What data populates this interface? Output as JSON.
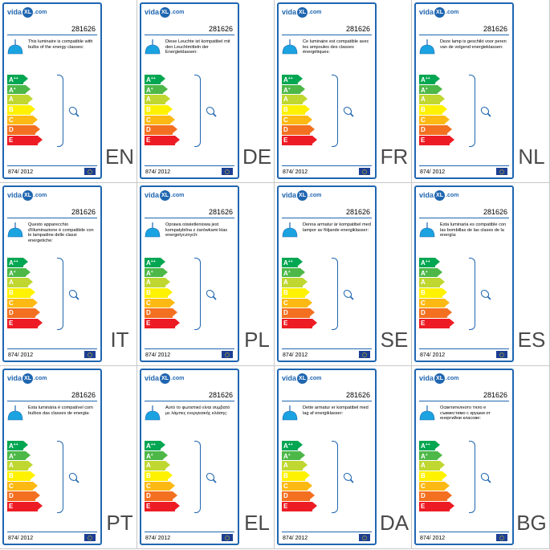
{
  "brand": {
    "prefix": "vida",
    "mark": "XL",
    "suffix": ".com"
  },
  "product_number": "281626",
  "regulation": "874/ 2012",
  "energy_classes": [
    "A++",
    "A+",
    "A",
    "B",
    "C",
    "D",
    "E"
  ],
  "class_colors": [
    "#00a651",
    "#4db848",
    "#bfd730",
    "#fff200",
    "#fdb913",
    "#f37021",
    "#ed1c24"
  ],
  "icons": {
    "lamp": "pendant-lamp-icon",
    "bulb": "bulb-icon",
    "flag": "eu-flag-icon"
  },
  "accent_color": "#1f66b0",
  "labels": [
    {
      "code": "EN",
      "text": "This luminaire is compatible with bulbs of the energy classes:"
    },
    {
      "code": "DE",
      "text": "Diese Leuchte ist kompatibel mit den Leuchtmitteln der Energieklassen:"
    },
    {
      "code": "FR",
      "text": "Ce luminaire est compatible avec les ampoules des classes énergétiques:"
    },
    {
      "code": "NL",
      "text": "Deze lamp is geschikt voor peren van de volgend energieklassen:"
    },
    {
      "code": "IT",
      "text": "Questo apparecchio d'illuminazione è compatibile con le lampadine delle classi energetiche:"
    },
    {
      "code": "PL",
      "text": "Oprawa oświetleniowa jest kompatybilna z żarówkami klas energetycznych:"
    },
    {
      "code": "SE",
      "text": "Denna armatur är kompatibel med lampor av följande energiklasser:"
    },
    {
      "code": "ES",
      "text": "Esta luminaria es compatible con las bombillas de las clases de la energía:"
    },
    {
      "code": "PT",
      "text": "Esta luminária é compatível com bulbos das classes de energia:"
    },
    {
      "code": "EL",
      "text": "Αυτό το φωτιστικό είναι συμβατό με λάμπες ενεργειακής κλάσης:"
    },
    {
      "code": "DA",
      "text": "Dette armatur er kompatibel med lag af energiklasser:"
    },
    {
      "code": "BG",
      "text": "Осветителното тяло е съвместимо с крушки от енергийни класове:"
    }
  ]
}
